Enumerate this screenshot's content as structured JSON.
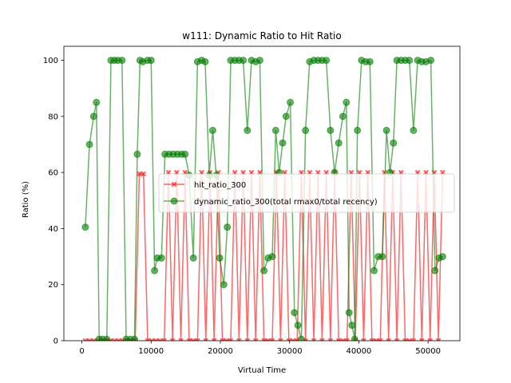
{
  "chart_data": {
    "type": "line",
    "title": "w111: Dynamic Ratio to Hit Ratio",
    "xlabel": "Virtual Time",
    "ylabel": "Ratio (%)",
    "xlim": [
      -2600,
      54600
    ],
    "ylim": [
      0,
      105
    ],
    "xticks": [
      0,
      10000,
      20000,
      30000,
      40000,
      50000
    ],
    "yticks": [
      0,
      20,
      40,
      60,
      80,
      100
    ],
    "grid": false,
    "legend_position": "center-right",
    "series": [
      {
        "name": "hit_ratio_300",
        "color": "#ff0000",
        "marker": "x",
        "x": [
          500,
          1100,
          1700,
          2300,
          2900,
          3500,
          4100,
          4700,
          5300,
          5900,
          6500,
          7100,
          7700,
          8300,
          8900,
          9500,
          10100,
          10700,
          11300,
          11900,
          12500,
          13100,
          13700,
          14300,
          14900,
          15500,
          16100,
          16700,
          17300,
          17900,
          18500,
          19100,
          19700,
          20300,
          20900,
          21500,
          22100,
          22700,
          23300,
          23900,
          24500,
          25100,
          25700,
          26300,
          26900,
          27500,
          28100,
          28700,
          29300,
          29900,
          30500,
          31100,
          31700,
          32300,
          32900,
          33500,
          34100,
          34700,
          35300,
          35900,
          36500,
          37100,
          37700,
          38300,
          38900,
          39500,
          40100,
          40700,
          41300,
          41900,
          42500,
          43100,
          43700,
          44300,
          44900,
          45500,
          46100,
          46700,
          47300,
          47900,
          48500,
          49100,
          49700,
          50300,
          50900,
          51500,
          52100
        ],
        "y": [
          0,
          0,
          0,
          0,
          0,
          0,
          0,
          0,
          0,
          0,
          0,
          0,
          0,
          59.5,
          59.5,
          0,
          0,
          0,
          0,
          0,
          60,
          0,
          60,
          0,
          60,
          0,
          0,
          0,
          60,
          0,
          60,
          0,
          60,
          0,
          0,
          0,
          60,
          0,
          60,
          0,
          60,
          0,
          60,
          0,
          0,
          0,
          60,
          0,
          60,
          0,
          0,
          0,
          60,
          0,
          60,
          0,
          60,
          0,
          60,
          0,
          60,
          0,
          0,
          0,
          60,
          0,
          60,
          0,
          60,
          0,
          0,
          0,
          60,
          0,
          60,
          0,
          60,
          0,
          0,
          0,
          60,
          0,
          60,
          0,
          60,
          0,
          60
        ]
      },
      {
        "name": "dynamic_ratio_300(total rmax0/total recency)",
        "color": "#008000",
        "marker": "o",
        "x": [
          500,
          1100,
          1700,
          2100,
          2500,
          3000,
          3600,
          4200,
          4700,
          5200,
          5800,
          6400,
          7000,
          7600,
          8000,
          8400,
          8800,
          9500,
          10000,
          10500,
          10900,
          11500,
          12000,
          12600,
          13200,
          13800,
          14400,
          14900,
          15500,
          16100,
          16700,
          17300,
          17800,
          18400,
          18900,
          19400,
          19900,
          20500,
          21000,
          21500,
          22100,
          22700,
          23300,
          23900,
          24500,
          25100,
          25700,
          26300,
          26900,
          27500,
          28000,
          28500,
          29000,
          29500,
          30100,
          30700,
          31200,
          31700,
          32300,
          32900,
          33500,
          34100,
          34700,
          35300,
          35900,
          36500,
          37100,
          37700,
          38200,
          38600,
          39000,
          39400,
          39800,
          40400,
          41000,
          41600,
          42200,
          42800,
          43400,
          44000,
          44500,
          45000,
          45500,
          46100,
          46700,
          47300,
          47900,
          48500,
          49100,
          49700,
          50400,
          51000,
          51600,
          52100
        ],
        "y": [
          40.5,
          70,
          80,
          85,
          0.5,
          0.5,
          0.5,
          100,
          100,
          100,
          100,
          0.5,
          0.5,
          0.5,
          66.5,
          100,
          99.5,
          100,
          100,
          25,
          29.5,
          29.5,
          66.5,
          66.5,
          66.5,
          66.5,
          66.5,
          66.5,
          59,
          29.5,
          99.5,
          100,
          99.5,
          59,
          75,
          59,
          29.5,
          20,
          40.5,
          100,
          100,
          100,
          100,
          75,
          100,
          99.5,
          100,
          25,
          29.5,
          30,
          75,
          60,
          70.5,
          80,
          85,
          10,
          5.5,
          0.5,
          75,
          99.5,
          100,
          100,
          100,
          100,
          75,
          60,
          70.5,
          80,
          85,
          10,
          5.5,
          0.5,
          75,
          100,
          99.5,
          99.5,
          25,
          30,
          30,
          75,
          60,
          70.5,
          100,
          100,
          100,
          100,
          75,
          100,
          99.5,
          99.5,
          100,
          25,
          29.5,
          30
        ]
      }
    ]
  }
}
